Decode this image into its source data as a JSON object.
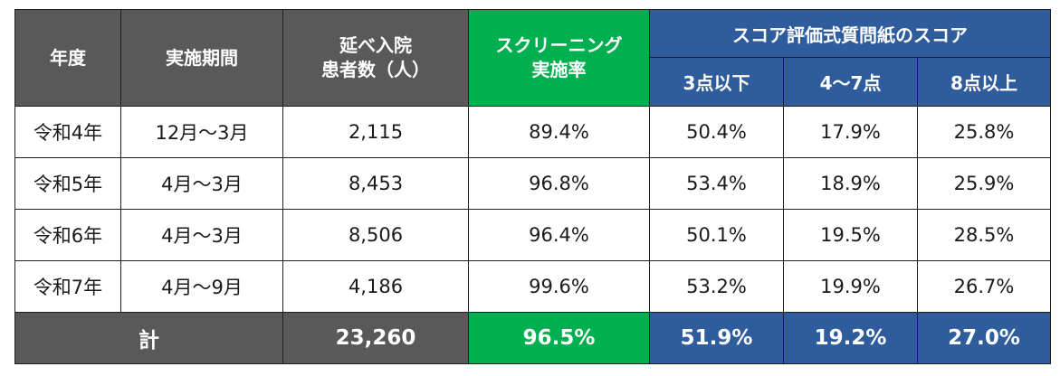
{
  "headers": {
    "fiscal_year": "年度",
    "period": "実施期間",
    "patients_line1": "延べ入院",
    "patients_line2": "患者数（人）",
    "screening_line1": "スクリーニング",
    "screening_line2": "実施率",
    "score_group": "スコア評価式質問紙のスコア",
    "score_low": "3点以下",
    "score_mid": "4～7点",
    "score_high": "8点以上"
  },
  "rows": [
    {
      "year": "令和4年",
      "period": "12月～3月",
      "patients": "2,115",
      "screening_rate": "89.4%",
      "low": "50.4%",
      "mid": "17.9%",
      "high": "25.8%"
    },
    {
      "year": "令和5年",
      "period": "4月～3月",
      "patients": "8,453",
      "screening_rate": "96.8%",
      "low": "53.4%",
      "mid": "18.9%",
      "high": "25.9%"
    },
    {
      "year": "令和6年",
      "period": "4月～3月",
      "patients": "8,506",
      "screening_rate": "96.4%",
      "low": "50.1%",
      "mid": "19.5%",
      "high": "28.5%"
    },
    {
      "year": "令和7年",
      "period": "4月～9月",
      "patients": "4,186",
      "screening_rate": "99.6%",
      "low": "53.2%",
      "mid": "19.9%",
      "high": "26.7%"
    }
  ],
  "total": {
    "label": "計",
    "patients": "23,260",
    "screening_rate": "96.5%",
    "low": "51.9%",
    "mid": "19.2%",
    "high": "27.0%"
  },
  "colors": {
    "header_gray": "#595959",
    "screening_green": "#00b050",
    "score_blue": "#2e5c9c"
  }
}
